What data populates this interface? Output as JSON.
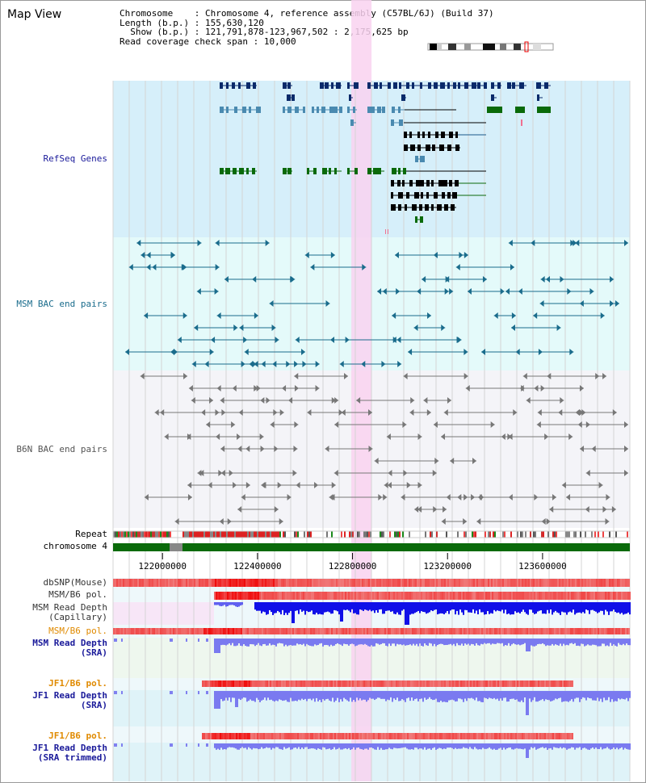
{
  "title": "Map View",
  "header": {
    "rows": [
      {
        "key": "Chromosome    ",
        "value": "Chromosome 4, reference assembly (C57BL/6J) (Build 37)"
      },
      {
        "key": "Length (b.p.) ",
        "value": "155,630,120"
      },
      {
        "key": "  Show (b.p.) ",
        "value": "121,791,878-123,967,502 : 2,175,625 bp"
      },
      {
        "key": "Read coverage check span",
        "value": "10,000"
      }
    ]
  },
  "region": {
    "start": 121791878,
    "end": 123967502,
    "highlight_start": 122795000,
    "highlight_end": 122880000
  },
  "tracks": {
    "refseq": {
      "label": "RefSeq Genes",
      "color": "#1a1a9a"
    },
    "msm_bac": {
      "label": "MSM BAC end pairs",
      "color": "#1a6c8c"
    },
    "b6n_bac": {
      "label": "B6N BAC end pairs",
      "color": "#555555"
    },
    "repeat": {
      "label": "Repeat"
    },
    "chromosome": {
      "label": "chromosome 4"
    },
    "dbsnp": {
      "label": "dbSNP(Mouse)"
    },
    "msm_b6_pol_1": {
      "label": "MSM/B6 pol."
    },
    "msm_depth_cap": {
      "label": "MSM Read Depth",
      "label2": "(Capillary)"
    },
    "msm_b6_pol_2": {
      "label": "MSM/B6 pol."
    },
    "msm_depth_sra": {
      "label": "MSM Read Depth",
      "label2": "(SRA)"
    },
    "jf1_b6_pol_1": {
      "label": "JF1/B6 pol."
    },
    "jf1_depth_sra": {
      "label": "JF1 Read Depth",
      "label2": "(SRA)"
    },
    "jf1_b6_pol_2": {
      "label": "JF1/B6 pol."
    },
    "jf1_depth_trim": {
      "label": "JF1 Read Depth",
      "label2": "(SRA trimmed)"
    }
  },
  "axis": {
    "ticks": [
      "122000000",
      "122400000",
      "122800000",
      "123200000",
      "123600000"
    ],
    "tick_values": [
      122000000,
      122400000,
      122800000,
      123200000,
      123600000
    ]
  },
  "colors": {
    "refseq_bg": "#d6effa",
    "msm_bg": "#e4fafa",
    "b6n_bg": "#f4f4f8",
    "highlight": "#f9d2f0",
    "chromosome": "#0a6a0a",
    "snp": "#f07070",
    "depth": "#1010e8",
    "depth_light": "#7a7af0"
  }
}
